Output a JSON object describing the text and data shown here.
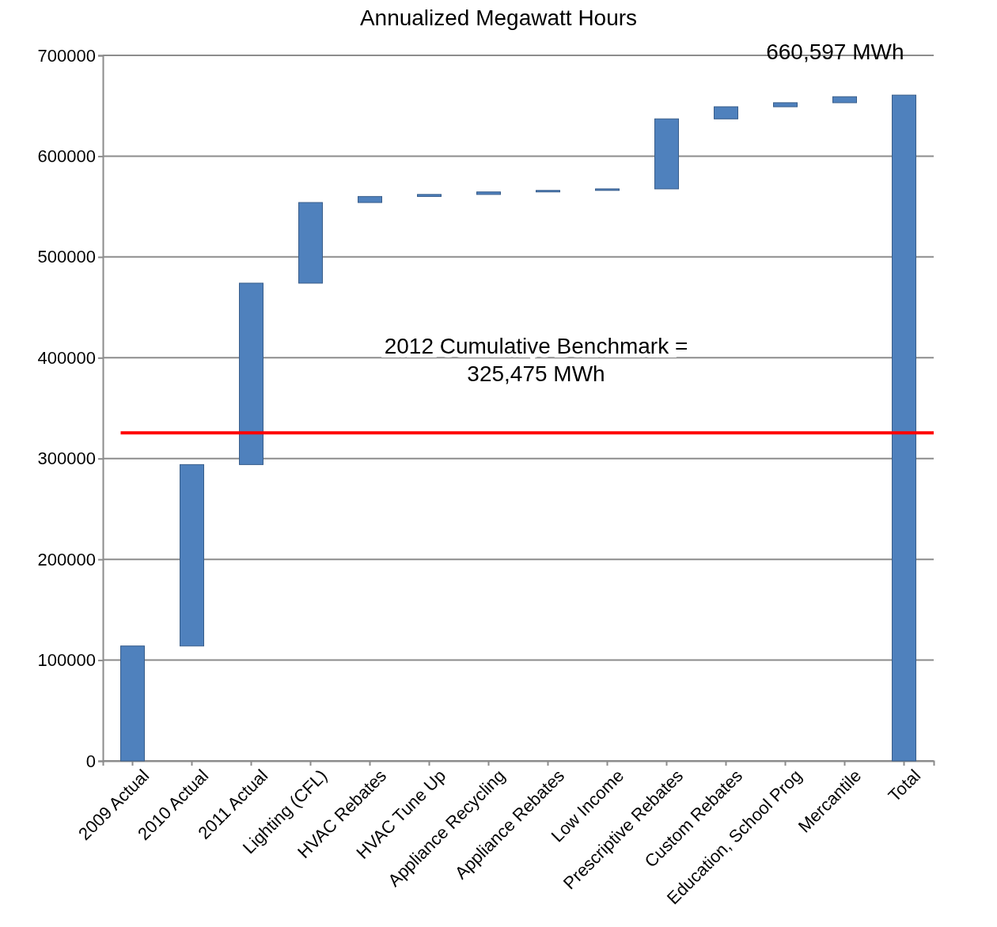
{
  "chart_data": {
    "type": "bar",
    "title": "Annualized Megawatt Hours",
    "categories": [
      "2009 Actual",
      "2010 Actual",
      "2011 Actual",
      "Lighting (CFL)",
      "HVAC Rebates",
      "HVAC Tune Up",
      "Appliance Recycling",
      "Appliance Rebates",
      "Low Income",
      "Prescriptive Rebates",
      "Custom Rebates",
      "Education, School Prog",
      "Mercantile",
      "Total"
    ],
    "values": [
      114000,
      180000,
      180000,
      80000,
      6000,
      2000,
      2500,
      1500,
      1500,
      69500,
      12000,
      4000,
      6000,
      660597
    ],
    "base": [
      0,
      114000,
      294000,
      474000,
      554000,
      560000,
      562000,
      564500,
      566000,
      567500,
      637000,
      649000,
      653000,
      0
    ],
    "color": "#4f81bd",
    "ylim": [
      0,
      700000
    ],
    "yticks": [
      0,
      100000,
      200000,
      300000,
      400000,
      500000,
      600000,
      700000
    ],
    "grid": "y",
    "legend": false,
    "ref_lines": [
      {
        "axis": "y",
        "value": 325475,
        "label": "2012 Cumulative Benchmark = 325,475 MWh",
        "color": "#ff0000"
      }
    ],
    "annotations": [
      {
        "text": "660,597 MWh",
        "x": "Total",
        "y": 660597
      }
    ]
  }
}
